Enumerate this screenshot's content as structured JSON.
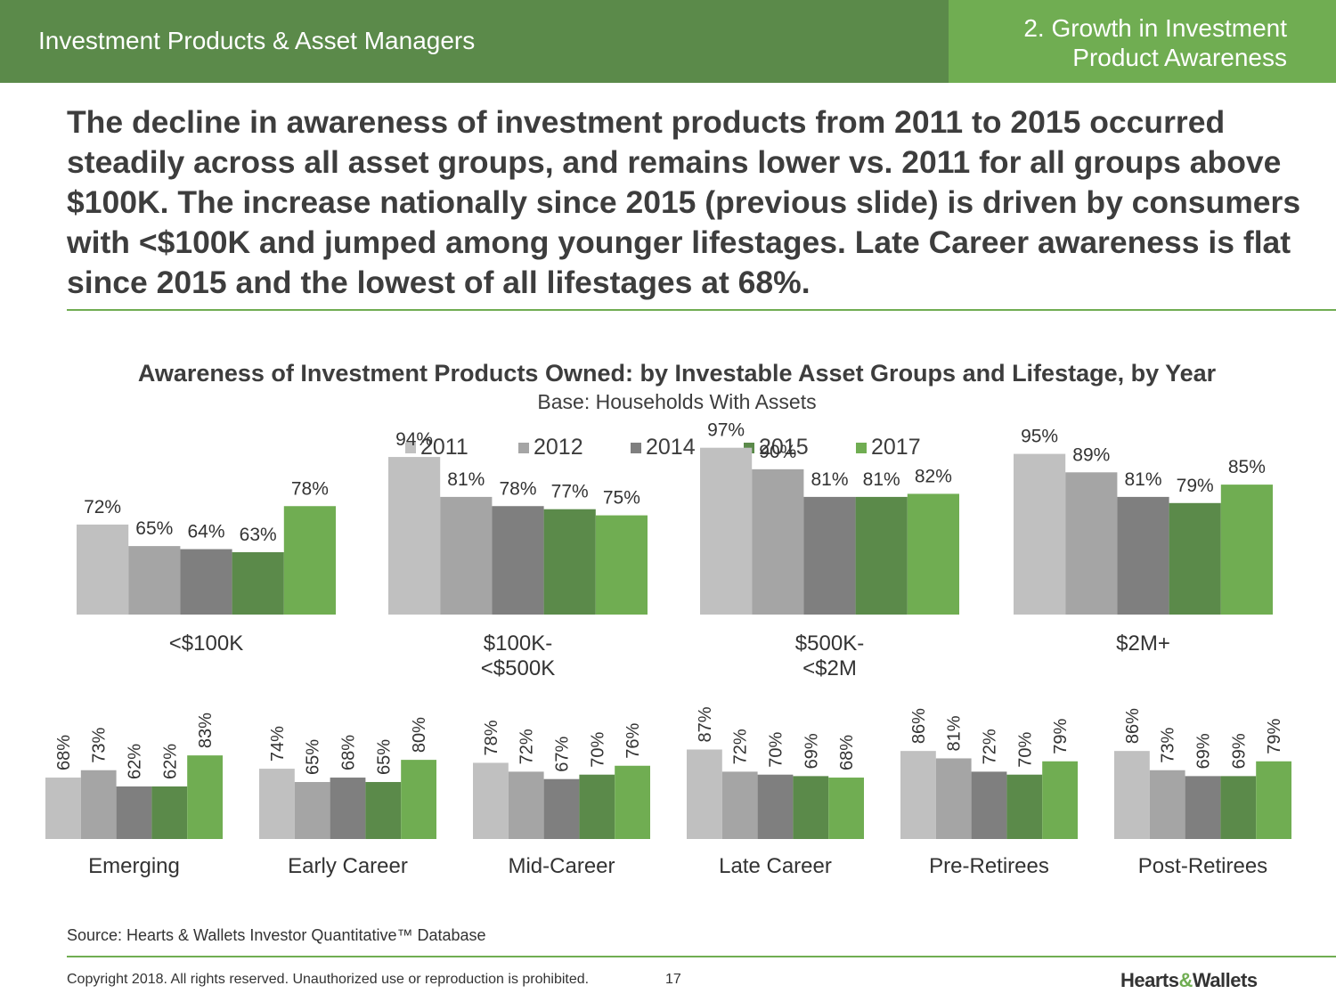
{
  "header": {
    "section": "Investment Products & Asset Managers",
    "slide_title_line1": "2. Growth in Investment",
    "slide_title_line2": "Product Awareness"
  },
  "headline": "The decline in awareness of investment products from 2011 to 2015 occurred steadily across all asset groups, and remains lower vs. 2011 for all groups above $100K. The increase nationally since 2015 (previous slide) is driven by consumers with <$100K and jumped among younger lifestages. Late Career awareness is flat since 2015 and the lowest of all lifestages at 68%.",
  "colors": {
    "header_dark": "#5b8a4a",
    "header_light": "#70ad52",
    "series": [
      "#c0c0c0",
      "#a5a5a5",
      "#7f7f7f",
      "#5b8a4a",
      "#70ad52"
    ]
  },
  "chart_data": [
    {
      "type": "bar",
      "title": "Awareness of Investment Products Owned: by Investable Asset Groups and Lifestage, by Year",
      "subtitle": "Base: Households With Assets",
      "legend": [
        "2011",
        "2012",
        "2014",
        "2015",
        "2017"
      ],
      "legend_placement": "top",
      "categories": [
        "<$100K",
        "$100K-\n<$500K",
        "$500K-\n<$2M",
        "$2M+"
      ],
      "series": [
        {
          "name": "2011",
          "values": [
            72,
            94,
            97,
            95
          ]
        },
        {
          "name": "2012",
          "values": [
            65,
            81,
            90,
            89
          ]
        },
        {
          "name": "2014",
          "values": [
            64,
            78,
            81,
            81
          ]
        },
        {
          "name": "2015",
          "values": [
            63,
            77,
            81,
            79
          ]
        },
        {
          "name": "2017",
          "values": [
            78,
            75,
            82,
            85
          ]
        }
      ],
      "unit": "%",
      "grid": false
    },
    {
      "type": "bar",
      "categories": [
        "Emerging",
        "Early Career",
        "Mid-Career",
        "Late Career",
        "Pre-Retirees",
        "Post-Retirees"
      ],
      "series": [
        {
          "name": "2011",
          "values": [
            68,
            74,
            78,
            87,
            86,
            86
          ]
        },
        {
          "name": "2012",
          "values": [
            73,
            65,
            72,
            72,
            81,
            73
          ]
        },
        {
          "name": "2014",
          "values": [
            62,
            68,
            67,
            70,
            72,
            69
          ]
        },
        {
          "name": "2015",
          "values": [
            62,
            65,
            70,
            69,
            70,
            69
          ]
        },
        {
          "name": "2017",
          "values": [
            83,
            80,
            76,
            68,
            79,
            79
          ]
        }
      ],
      "unit": "%",
      "grid": false
    }
  ],
  "footer": {
    "source": "Source: Hearts & Wallets Investor Quantitative™ Database",
    "copyright": "Copyright 2018. All rights reserved. Unauthorized use or reproduction is prohibited.",
    "page_number": "17",
    "logo_left": "Hearts",
    "logo_amp": "&",
    "logo_right": "Wallets"
  }
}
